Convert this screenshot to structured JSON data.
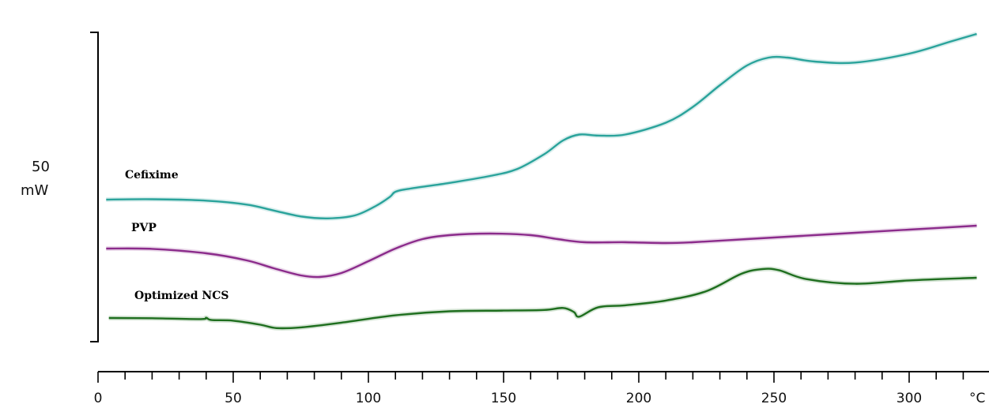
{
  "chart_data": {
    "type": "line",
    "xlabel": "",
    "ylabel": "",
    "x_unit": "°C",
    "xlim": [
      0,
      325
    ],
    "x_ticks": [
      0,
      50,
      100,
      150,
      200,
      250,
      300
    ],
    "y_scale_bar": {
      "value": "50",
      "unit": "mW"
    },
    "grid": false,
    "legend": "labels above each curve",
    "series": [
      {
        "name": "Cefixime",
        "color": "#2aa39b",
        "x": [
          3,
          20,
          40,
          55,
          65,
          75,
          85,
          95,
          103,
          108,
          110,
          115,
          130,
          145,
          155,
          165,
          172,
          178,
          185,
          195,
          210,
          220,
          230,
          240,
          248,
          255,
          265,
          280,
          300,
          315,
          325
        ],
        "y": [
          0,
          0.02,
          -0.05,
          -0.25,
          -0.55,
          -0.85,
          -0.95,
          -0.8,
          -0.3,
          0.15,
          0.4,
          0.55,
          0.85,
          1.2,
          1.55,
          2.3,
          3.0,
          3.3,
          3.25,
          3.3,
          3.9,
          4.7,
          5.8,
          6.8,
          7.2,
          7.2,
          7.0,
          6.95,
          7.4,
          8.0,
          8.4
        ]
      },
      {
        "name": "PVP",
        "color": "#8b2b8b",
        "x": [
          3,
          20,
          40,
          55,
          65,
          75,
          82,
          90,
          100,
          110,
          120,
          130,
          145,
          160,
          170,
          180,
          195,
          210,
          220,
          240,
          260,
          280,
          300,
          325
        ],
        "y": [
          0,
          -0.02,
          -0.3,
          -0.75,
          -1.25,
          -1.7,
          -1.8,
          -1.55,
          -0.8,
          0,
          0.6,
          0.85,
          0.95,
          0.85,
          0.6,
          0.4,
          0.4,
          0.35,
          0.4,
          0.6,
          0.8,
          1.0,
          1.2,
          1.45
        ]
      },
      {
        "name": "Optimized NCS",
        "color": "#1e6e1e",
        "x": [
          4,
          20,
          38,
          40,
          42,
          50,
          60,
          66,
          75,
          90,
          110,
          130,
          150,
          165,
          172,
          176,
          178,
          185,
          195,
          210,
          225,
          238,
          246,
          252,
          262,
          280,
          300,
          325
        ],
        "y": [
          0,
          -0.02,
          -0.08,
          0.02,
          -0.15,
          -0.2,
          -0.5,
          -0.75,
          -0.7,
          -0.35,
          0.2,
          0.5,
          0.55,
          0.6,
          0.75,
          0.45,
          0.1,
          0.8,
          0.95,
          1.3,
          2.0,
          3.3,
          3.65,
          3.55,
          2.9,
          2.55,
          2.8,
          3.0
        ]
      }
    ]
  }
}
